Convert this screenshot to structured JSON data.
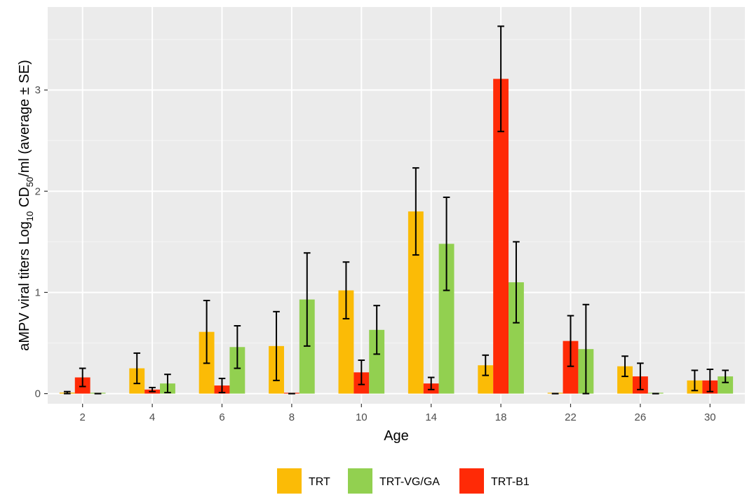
{
  "chart_data": {
    "type": "bar",
    "xlabel": "Age",
    "ylabel_parts": [
      "aMPV viral titers Log",
      "10",
      " CD",
      "50",
      "/ml (average ± SE)"
    ],
    "categories": [
      "2",
      "4",
      "6",
      "8",
      "10",
      "14",
      "18",
      "22",
      "26",
      "30"
    ],
    "ylim": [
      -0.1,
      3.82
    ],
    "yticks": [
      0,
      1,
      2,
      3
    ],
    "grid": true,
    "legend_position": "bottom",
    "error_bars": "average ± SE",
    "series": [
      {
        "name": "TRT",
        "color": "#FBBB06",
        "values": [
          0.01,
          0.25,
          0.61,
          0.47,
          1.02,
          1.8,
          0.28,
          0.0,
          0.27,
          0.13
        ],
        "errors": [
          0.01,
          0.15,
          0.31,
          0.34,
          0.28,
          0.43,
          0.1,
          0.0,
          0.1,
          0.1
        ]
      },
      {
        "name": "TRT-B1",
        "color": "#FF2A06",
        "values": [
          0.16,
          0.04,
          0.08,
          0.0,
          0.21,
          0.1,
          3.11,
          0.52,
          0.17,
          0.13
        ],
        "errors": [
          0.09,
          0.02,
          0.07,
          0.0,
          0.12,
          0.06,
          0.52,
          0.25,
          0.13,
          0.11
        ]
      },
      {
        "name": "TRT-VG/GA",
        "color": "#92D050",
        "values": [
          0.0,
          0.1,
          0.46,
          0.93,
          0.63,
          1.48,
          1.1,
          0.44,
          0.0,
          0.17
        ],
        "errors": [
          0.0,
          0.09,
          0.21,
          0.46,
          0.24,
          0.46,
          0.4,
          0.44,
          0.0,
          0.06
        ]
      }
    ],
    "legend_order": [
      "TRT",
      "TRT-VG/GA",
      "TRT-B1"
    ]
  }
}
